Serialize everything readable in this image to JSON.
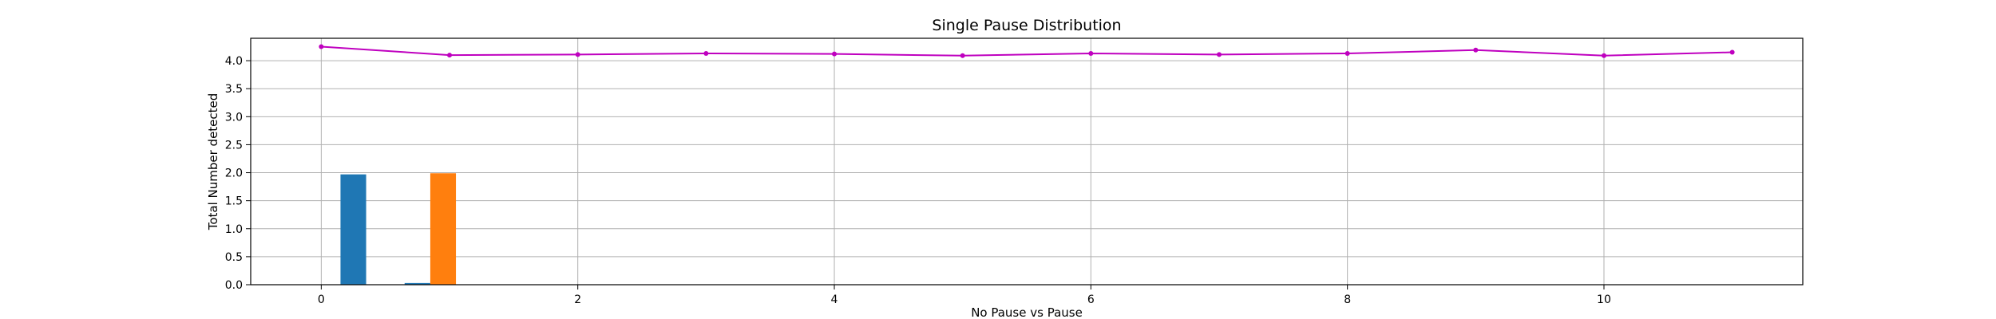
{
  "chart_data": {
    "type": "bar+line",
    "title": "Single Pause Distribution",
    "xlabel": "No Pause vs Pause",
    "ylabel": "Total Number detected",
    "xlim": [
      -0.55,
      11.55
    ],
    "ylim": [
      0,
      4.4
    ],
    "xticks": [
      "0",
      "2",
      "4",
      "6",
      "8",
      "10"
    ],
    "yticks": [
      "0.0",
      "0.5",
      "1.0",
      "1.5",
      "2.0",
      "2.5",
      "3.0",
      "3.5",
      "4.0"
    ],
    "grid": true,
    "colors": {
      "blue": "#1f77b4",
      "orange": "#ff7f0e",
      "line": "#bf00bf",
      "grid": "#b0b0b0"
    },
    "bars": [
      {
        "x": 0.15,
        "width": 0.2,
        "value": 1.97,
        "color": "#1f77b4"
      },
      {
        "x": 0.65,
        "width": 0.2,
        "value": 0.03,
        "color": "#1f77b4"
      },
      {
        "x": 0.85,
        "width": 0.2,
        "value": 1.99,
        "color": "#ff7f0e"
      }
    ],
    "line": {
      "x": [
        0,
        1,
        2,
        3,
        4,
        5,
        6,
        7,
        8,
        9,
        10,
        11
      ],
      "y": [
        4.25,
        4.1,
        4.11,
        4.13,
        4.12,
        4.09,
        4.13,
        4.11,
        4.13,
        4.19,
        4.09,
        4.15
      ]
    }
  }
}
